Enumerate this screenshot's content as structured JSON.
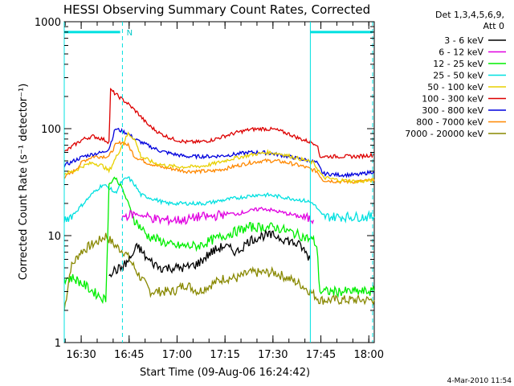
{
  "chart_data": {
    "type": "line",
    "title": "HESSI Observing Summary Count Rates, Corrected",
    "xlabel": "Start Time (09-Aug-06 16:24:42)",
    "ylabel": "Corrected Count Rate (s⁻¹ detector⁻¹)",
    "x_unit": "minutes after 16:24:42",
    "xlim": [
      0,
      97
    ],
    "ylim": [
      1,
      1000
    ],
    "y_scale": "log",
    "x_ticks": [
      {
        "x": 5.3,
        "label": "16:30"
      },
      {
        "x": 20.3,
        "label": "16:45"
      },
      {
        "x": 35.3,
        "label": "17:00"
      },
      {
        "x": 50.3,
        "label": "17:15"
      },
      {
        "x": 65.3,
        "label": "17:30"
      },
      {
        "x": 80.3,
        "label": "17:45"
      },
      {
        "x": 95.3,
        "label": "18:00"
      }
    ],
    "y_ticks": [
      {
        "y": 1,
        "label": "1"
      },
      {
        "y": 10,
        "label": "10"
      },
      {
        "y": 100,
        "label": "100"
      },
      {
        "y": 1000,
        "label": "1000"
      }
    ],
    "legend": {
      "position": "right",
      "header": [
        "Det 1,3,4,5,6,9,",
        "Att 0"
      ]
    },
    "series": [
      {
        "name": "3 - 6 keV",
        "color": "#000000",
        "points": [
          [
            14,
            4.5
          ],
          [
            18,
            5
          ],
          [
            20.5,
            6
          ],
          [
            23,
            8
          ],
          [
            26,
            6
          ],
          [
            30,
            5
          ],
          [
            34,
            5
          ],
          [
            38,
            5
          ],
          [
            42,
            5.5
          ],
          [
            46,
            7
          ],
          [
            50,
            8
          ],
          [
            54,
            7
          ],
          [
            58,
            9
          ],
          [
            62,
            10
          ],
          [
            66,
            10
          ],
          [
            70,
            9
          ],
          [
            74,
            8
          ],
          [
            77,
            6
          ]
        ]
      },
      {
        "name": "6 - 12 keV",
        "color": "#e000e0",
        "points": [
          [
            18,
            15
          ],
          [
            22,
            16
          ],
          [
            26,
            15
          ],
          [
            30,
            14
          ],
          [
            34,
            14
          ],
          [
            38,
            14
          ],
          [
            42,
            15
          ],
          [
            46,
            15
          ],
          [
            50,
            16
          ],
          [
            54,
            16
          ],
          [
            58,
            17
          ],
          [
            62,
            18
          ],
          [
            66,
            17
          ],
          [
            70,
            16
          ],
          [
            74,
            15
          ],
          [
            78,
            14
          ]
        ]
      },
      {
        "name": "12 - 25 keV",
        "color": "#00ee00",
        "points": [
          [
            0,
            4
          ],
          [
            3,
            4
          ],
          [
            6,
            3.5
          ],
          [
            9,
            3
          ],
          [
            13,
            2.5
          ],
          [
            14,
            30
          ],
          [
            16,
            35
          ],
          [
            18,
            28
          ],
          [
            20,
            20
          ],
          [
            22,
            14
          ],
          [
            26,
            10
          ],
          [
            30,
            9
          ],
          [
            34,
            8
          ],
          [
            38,
            8
          ],
          [
            42,
            8
          ],
          [
            46,
            9
          ],
          [
            50,
            10
          ],
          [
            54,
            11
          ],
          [
            58,
            12
          ],
          [
            62,
            12
          ],
          [
            66,
            12
          ],
          [
            70,
            11
          ],
          [
            74,
            10
          ],
          [
            78,
            9
          ],
          [
            79,
            8
          ],
          [
            80,
            3
          ],
          [
            97,
            3
          ]
        ]
      },
      {
        "name": "25 - 50 keV",
        "color": "#00e0e0",
        "points": [
          [
            0,
            14
          ],
          [
            3,
            16
          ],
          [
            6,
            20
          ],
          [
            9,
            25
          ],
          [
            12,
            30
          ],
          [
            14,
            28
          ],
          [
            16,
            25
          ],
          [
            18,
            32
          ],
          [
            20,
            35
          ],
          [
            22,
            30
          ],
          [
            24,
            24
          ],
          [
            28,
            22
          ],
          [
            32,
            20
          ],
          [
            36,
            20
          ],
          [
            40,
            20
          ],
          [
            44,
            20
          ],
          [
            48,
            21
          ],
          [
            52,
            22
          ],
          [
            56,
            23
          ],
          [
            60,
            24
          ],
          [
            64,
            24
          ],
          [
            68,
            23
          ],
          [
            72,
            22
          ],
          [
            76,
            21
          ],
          [
            78,
            20
          ],
          [
            81,
            15
          ],
          [
            86,
            15
          ],
          [
            97,
            15
          ]
        ]
      },
      {
        "name": "50 - 100 keV",
        "color": "#e8d000",
        "points": [
          [
            0,
            38
          ],
          [
            3,
            40
          ],
          [
            6,
            45
          ],
          [
            9,
            48
          ],
          [
            12,
            45
          ],
          [
            14,
            40
          ],
          [
            17,
            60
          ],
          [
            20,
            90
          ],
          [
            22,
            80
          ],
          [
            24,
            55
          ],
          [
            28,
            48
          ],
          [
            32,
            45
          ],
          [
            36,
            44
          ],
          [
            40,
            44
          ],
          [
            44,
            45
          ],
          [
            48,
            48
          ],
          [
            52,
            52
          ],
          [
            56,
            55
          ],
          [
            60,
            58
          ],
          [
            64,
            60
          ],
          [
            68,
            58
          ],
          [
            72,
            54
          ],
          [
            76,
            50
          ],
          [
            78,
            48
          ],
          [
            81,
            35
          ],
          [
            86,
            33
          ],
          [
            92,
            32
          ],
          [
            97,
            33
          ]
        ]
      },
      {
        "name": "100 - 300 keV",
        "color": "#dd0000",
        "points": [
          [
            0,
            60
          ],
          [
            3,
            70
          ],
          [
            6,
            80
          ],
          [
            9,
            85
          ],
          [
            12,
            80
          ],
          [
            14,
            75
          ],
          [
            14.5,
            230
          ],
          [
            17,
            200
          ],
          [
            20,
            170
          ],
          [
            23,
            140
          ],
          [
            26,
            110
          ],
          [
            30,
            90
          ],
          [
            34,
            80
          ],
          [
            38,
            75
          ],
          [
            42,
            75
          ],
          [
            46,
            78
          ],
          [
            50,
            85
          ],
          [
            54,
            92
          ],
          [
            58,
            98
          ],
          [
            62,
            100
          ],
          [
            66,
            98
          ],
          [
            70,
            90
          ],
          [
            74,
            80
          ],
          [
            77,
            75
          ],
          [
            79,
            72
          ],
          [
            80,
            55
          ],
          [
            86,
            55
          ],
          [
            92,
            55
          ],
          [
            97,
            57
          ]
        ]
      },
      {
        "name": "300 - 800 keV",
        "color": "#0000dd",
        "points": [
          [
            0,
            45
          ],
          [
            3,
            50
          ],
          [
            6,
            55
          ],
          [
            9,
            58
          ],
          [
            12,
            60
          ],
          [
            14,
            65
          ],
          [
            16,
            100
          ],
          [
            18,
            95
          ],
          [
            20,
            90
          ],
          [
            22,
            80
          ],
          [
            26,
            70
          ],
          [
            30,
            62
          ],
          [
            34,
            58
          ],
          [
            38,
            55
          ],
          [
            42,
            55
          ],
          [
            46,
            55
          ],
          [
            50,
            56
          ],
          [
            54,
            58
          ],
          [
            58,
            60
          ],
          [
            62,
            60
          ],
          [
            66,
            58
          ],
          [
            70,
            55
          ],
          [
            74,
            52
          ],
          [
            77,
            50
          ],
          [
            79,
            48
          ],
          [
            81,
            38
          ],
          [
            86,
            37
          ],
          [
            92,
            37
          ],
          [
            97,
            40
          ]
        ]
      },
      {
        "name": "800 - 7000 keV",
        "color": "#ff8800",
        "points": [
          [
            0,
            35
          ],
          [
            3,
            40
          ],
          [
            6,
            50
          ],
          [
            9,
            55
          ],
          [
            12,
            55
          ],
          [
            14,
            55
          ],
          [
            16,
            70
          ],
          [
            18,
            75
          ],
          [
            20,
            70
          ],
          [
            22,
            55
          ],
          [
            26,
            48
          ],
          [
            30,
            44
          ],
          [
            34,
            42
          ],
          [
            38,
            40
          ],
          [
            42,
            40
          ],
          [
            46,
            40
          ],
          [
            50,
            42
          ],
          [
            54,
            45
          ],
          [
            58,
            48
          ],
          [
            62,
            50
          ],
          [
            66,
            50
          ],
          [
            70,
            48
          ],
          [
            74,
            45
          ],
          [
            77,
            42
          ],
          [
            79,
            40
          ],
          [
            81,
            33
          ],
          [
            86,
            32
          ],
          [
            92,
            32
          ],
          [
            97,
            33
          ]
        ]
      },
      {
        "name": "7000 - 20000 keV",
        "color": "#888800",
        "points": [
          [
            0,
            2
          ],
          [
            2,
            5
          ],
          [
            5,
            7
          ],
          [
            8,
            8
          ],
          [
            11,
            9
          ],
          [
            13,
            10
          ],
          [
            16,
            8
          ],
          [
            19,
            7
          ],
          [
            22,
            5
          ],
          [
            24,
            4
          ],
          [
            27,
            3
          ],
          [
            30,
            3
          ],
          [
            34,
            3
          ],
          [
            38,
            3.5
          ],
          [
            42,
            3
          ],
          [
            46,
            3.5
          ],
          [
            50,
            4
          ],
          [
            54,
            4
          ],
          [
            58,
            4.5
          ],
          [
            62,
            4.5
          ],
          [
            66,
            4.5
          ],
          [
            70,
            4
          ],
          [
            74,
            3.5
          ],
          [
            77,
            3
          ],
          [
            80,
            2.5
          ],
          [
            86,
            2.5
          ],
          [
            92,
            2.5
          ],
          [
            97,
            2.5
          ]
        ]
      }
    ],
    "annotations": {
      "cyan_bars": [
        {
          "x0": 0,
          "x1": 17.5,
          "y": 800
        },
        {
          "x0": 77,
          "x1": 96.5,
          "y": 800
        }
      ],
      "solid_vertical_lines_x": [
        0,
        77
      ],
      "dashed_vertical_lines_x": [
        18.2,
        96.5
      ],
      "marker": {
        "x": 19.5,
        "y": 800,
        "label": "N"
      }
    }
  },
  "footer": {
    "timestamp": "4-Mar-2010 11:54"
  }
}
